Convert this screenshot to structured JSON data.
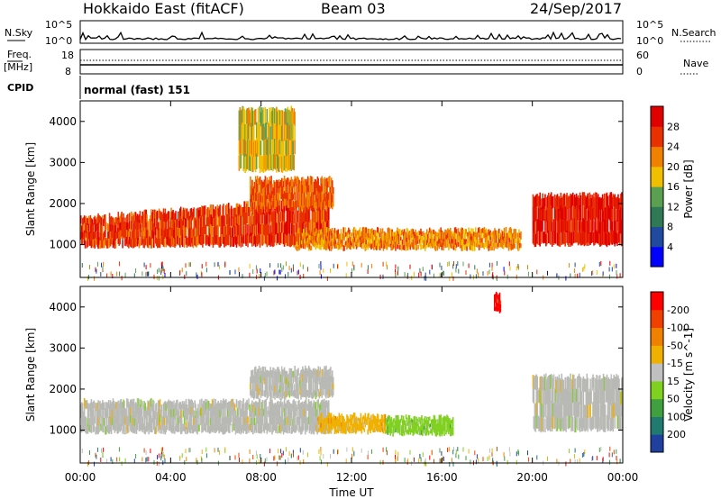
{
  "header": {
    "site": "Hokkaido East (fitACF)",
    "beam": "Beam 03",
    "date": "24/Sep/2017"
  },
  "top_panels": {
    "nsky_label": "N.Sky",
    "nsky_ticks": [
      "10^5",
      "10^0"
    ],
    "nsearch_label": "N.Search",
    "nsearch_ticks": [
      "10^5",
      "10^0"
    ],
    "freq_label": "Freq.",
    "freq_unit": "[MHz]",
    "freq_ticks": [
      "18",
      "8"
    ],
    "nave_label": "Nave",
    "nave_ticks": [
      "60",
      "0"
    ],
    "cpid_label": "CPID",
    "cpid_text": "normal (fast) 151"
  },
  "x_axis": {
    "label": "Time UT",
    "ticks": [
      "00:00",
      "04:00",
      "08:00",
      "12:00",
      "16:00",
      "20:00",
      "00:00"
    ]
  },
  "colors": {
    "power_scale": [
      "#0000ff",
      "#1f4aa0",
      "#2f7a55",
      "#5aa050",
      "#f0c000",
      "#f08000",
      "#e83000",
      "#e00000"
    ],
    "velocity_scale": [
      "#ff0000",
      "#f04000",
      "#f08000",
      "#f0b000",
      "#c0c0c0",
      "#80d020",
      "#40a040",
      "#207a70",
      "#2040a0"
    ],
    "ground_scatter": "#b8b8b4"
  },
  "chart_data": [
    {
      "type": "heatmap",
      "name": "Power",
      "xlabel": "Time UT",
      "ylabel": "Slant Range [km]",
      "xlim": [
        0,
        24
      ],
      "ylim": [
        200,
        4500
      ],
      "yticks": [
        1000,
        2000,
        3000,
        4000
      ],
      "colorbar": {
        "label": "Power [dB]",
        "ticks": [
          4,
          8,
          12,
          16,
          20,
          24,
          28
        ],
        "range": [
          0,
          32
        ]
      },
      "features": [
        {
          "region": "main F-region band",
          "t_start": 0,
          "t_end": 11,
          "range_start": 950,
          "range_end": 1650,
          "range_end_shift": 1400,
          "value": 26
        },
        {
          "region": "upper band",
          "t_start": 7.5,
          "t_end": 11.2,
          "range_start": 1900,
          "range_end": 2600,
          "value": 24
        },
        {
          "region": "mid-day band",
          "t_start": 9.5,
          "t_end": 19.5,
          "range_start": 900,
          "range_end": 1350,
          "value": 22
        },
        {
          "region": "evening band",
          "t_start": 20,
          "t_end": 24,
          "range_start": 1000,
          "range_end": 2200,
          "value": 28
        },
        {
          "region": "high-range patches",
          "t_start": 7,
          "t_end": 9.5,
          "range_start": 2800,
          "range_end": 4300,
          "value": 18
        }
      ]
    },
    {
      "type": "heatmap",
      "name": "Velocity",
      "xlabel": "Time UT",
      "ylabel": "Slant Range [km]",
      "xlim": [
        0,
        24
      ],
      "ylim": [
        200,
        4500
      ],
      "yticks": [
        1000,
        2000,
        3000,
        4000
      ],
      "colorbar": {
        "label": "Velocity [m s^-1]",
        "ticks": [
          -200,
          -100,
          -50,
          -15,
          15,
          50,
          100,
          200
        ]
      },
      "features": [
        {
          "region": "ground scatter band",
          "t_start": 0,
          "t_end": 11,
          "range_start": 950,
          "range_end": 1700,
          "velocity": 0
        },
        {
          "region": "ground scatter upper",
          "t_start": 7.5,
          "t_end": 11.2,
          "range_start": 1800,
          "range_end": 2500,
          "velocity": 0
        },
        {
          "region": "negative velocity patch",
          "t_start": 10.5,
          "t_end": 13.5,
          "range_start": 950,
          "range_end": 1350,
          "velocity": -30
        },
        {
          "region": "positive velocity patch",
          "t_start": 13.5,
          "t_end": 16.5,
          "range_start": 900,
          "range_end": 1300,
          "velocity": 30
        },
        {
          "region": "ground scatter evening",
          "t_start": 20,
          "t_end": 24,
          "range_start": 1000,
          "range_end": 2300,
          "velocity": 0
        },
        {
          "region": "strong negative patch",
          "t_start": 18.3,
          "t_end": 18.6,
          "range_start": 3900,
          "range_end": 4300,
          "velocity": -200
        }
      ]
    }
  ]
}
